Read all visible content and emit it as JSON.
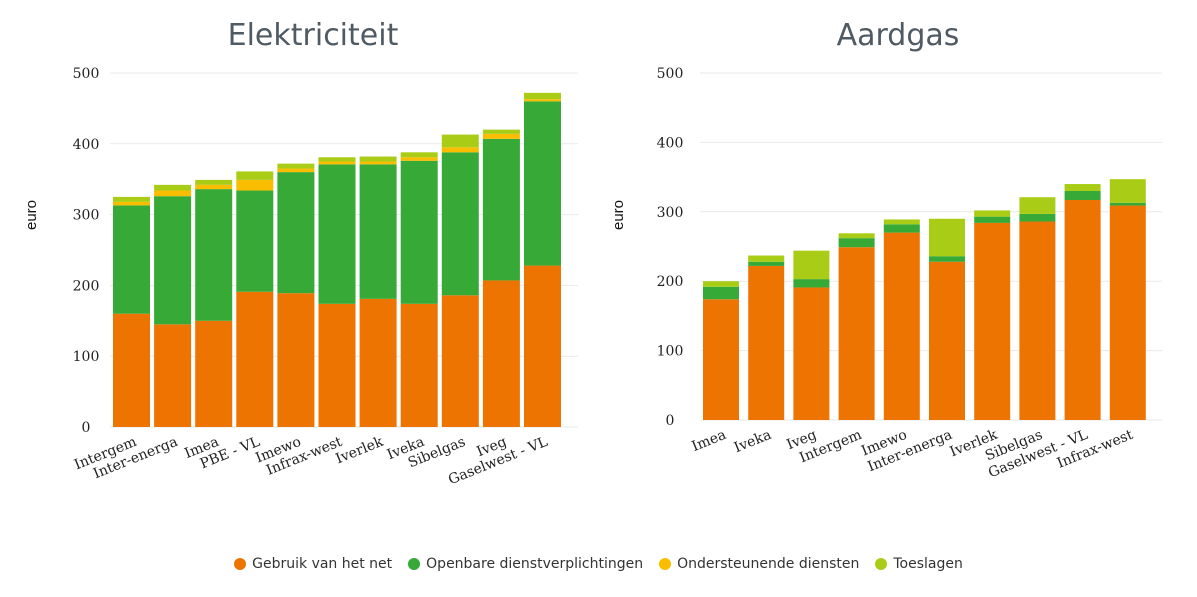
{
  "colors": {
    "Gebruik van het net": "#ee7402",
    "Openbare dienstverplichtingen": "#36a936",
    "Ondersteunende diensten": "#fbbd00",
    "Toeslagen": "#a9cd16"
  },
  "legend": [
    {
      "label": "Gebruik van het net",
      "color": "#ee7402"
    },
    {
      "label": "Openbare dienstverplichtingen",
      "color": "#36a936"
    },
    {
      "label": "Ondersteunende diensten",
      "color": "#fbbd00"
    },
    {
      "label": "Toeslagen",
      "color": "#a9cd16"
    }
  ],
  "chart_data": [
    {
      "type": "bar",
      "stacked": true,
      "title": "Elektriciteit",
      "ylabel": "euro",
      "xlabel": "",
      "ylim": [
        0,
        500
      ],
      "yticks": [
        0,
        100,
        200,
        300,
        400,
        500
      ],
      "grid": true,
      "categories": [
        "Intergem",
        "Inter-energa",
        "Imea",
        "PBE - VL",
        "Imewo",
        "Infrax-west",
        "Iverlek",
        "Iveka",
        "Sibelgas",
        "Iveg",
        "Gaselwest - VL"
      ],
      "series": [
        {
          "name": "Gebruik van het net",
          "values": [
            160,
            145,
            150,
            191,
            189,
            174,
            181,
            174,
            186,
            207,
            228
          ]
        },
        {
          "name": "Openbare dienstverplichtingen",
          "values": [
            153,
            181,
            186,
            143,
            171,
            197,
            190,
            202,
            202,
            200,
            232
          ]
        },
        {
          "name": "Ondersteunende diensten",
          "values": [
            5,
            8,
            6,
            15,
            5,
            4,
            4,
            5,
            7,
            7,
            3
          ]
        },
        {
          "name": "Toeslagen",
          "values": [
            7,
            8,
            7,
            12,
            7,
            6,
            7,
            7,
            18,
            6,
            9
          ]
        }
      ]
    },
    {
      "type": "bar",
      "stacked": true,
      "title": "Aardgas",
      "ylabel": "euro",
      "xlabel": "",
      "ylim": [
        0,
        500
      ],
      "yticks": [
        0,
        100,
        200,
        300,
        400,
        500
      ],
      "grid": true,
      "categories": [
        "Imea",
        "Iveka",
        "Iveg",
        "Intergem",
        "Imewo",
        "Inter-energa",
        "Iverlek",
        "Sibelgas",
        "Gaselwest - VL",
        "Infrax-west"
      ],
      "series": [
        {
          "name": "Gebruik van het net",
          "values": [
            174,
            222,
            191,
            249,
            270,
            228,
            284,
            286,
            317,
            309
          ]
        },
        {
          "name": "Openbare dienstverplichtingen",
          "values": [
            18,
            6,
            12,
            13,
            12,
            8,
            9,
            11,
            13,
            4
          ]
        },
        {
          "name": "Ondersteunende diensten",
          "values": [
            0,
            0,
            0,
            0,
            0,
            0,
            0,
            0,
            0,
            0
          ]
        },
        {
          "name": "Toeslagen",
          "values": [
            8,
            9,
            41,
            7,
            7,
            54,
            9,
            24,
            10,
            34
          ]
        }
      ]
    }
  ]
}
